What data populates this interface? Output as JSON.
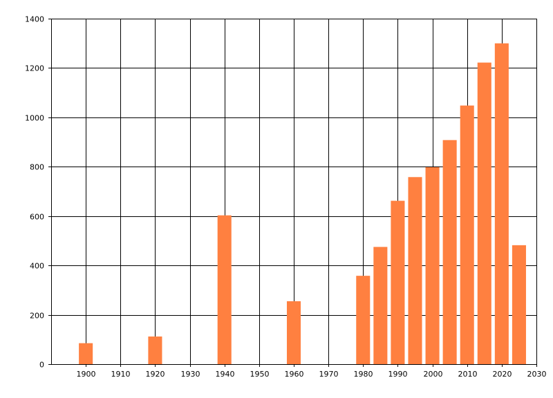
{
  "chart_data": {
    "type": "bar",
    "title": "",
    "xlabel": "",
    "ylabel": "",
    "xlim": [
      1890,
      2030
    ],
    "ylim": [
      0,
      1400
    ],
    "grid": true,
    "bar_color": "#FF8040",
    "x_ticks": [
      "1900",
      "1910",
      "1920",
      "1930",
      "1940",
      "1950",
      "1960",
      "1970",
      "1980",
      "1990",
      "2000",
      "2010",
      "2020",
      "2030"
    ],
    "y_ticks": [
      "0",
      "200",
      "400",
      "600",
      "800",
      "1000",
      "1200",
      "1400"
    ],
    "bar_width_years": 4,
    "series": [
      {
        "x": [
          1900,
          1920,
          1940,
          1960,
          1980,
          1985,
          1990,
          1995,
          2000,
          2005,
          2010,
          2015,
          2020,
          2025
        ],
        "values": [
          85,
          112,
          603,
          255,
          358,
          475,
          662,
          758,
          798,
          908,
          1048,
          1222,
          1300,
          482
        ]
      }
    ]
  }
}
